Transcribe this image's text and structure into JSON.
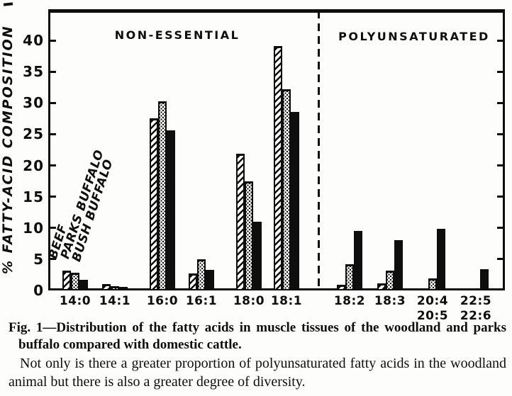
{
  "page": {
    "ink_color": "#0e0e0e",
    "paper_color": "#fdfdfc"
  },
  "chart_data": {
    "type": "bar",
    "ylabel": "% FATTY-ACID COMPOSITION",
    "ylim": [
      0,
      40
    ],
    "yticks": [
      0,
      5,
      10,
      15,
      20,
      25,
      30,
      35,
      40
    ],
    "grid": false,
    "legend_position": "rotated labels inside plot, above first bar group",
    "sections": [
      {
        "label": "NON-ESSENTIAL",
        "categories": [
          "14:0",
          "14:1",
          "16:0",
          "16:1",
          "18:0",
          "18:1"
        ]
      },
      {
        "label": "POLYUNSATURATED",
        "categories": [
          "18:2",
          "18:3",
          "20:4\n20:5",
          "22:5\n22:6"
        ]
      }
    ],
    "categories": [
      "14:0",
      "14:1",
      "16:0",
      "16:1",
      "18:0",
      "18:1",
      "18:2",
      "18:3",
      "20:4\n20:5",
      "22:5\n22:6"
    ],
    "series": [
      {
        "name": "BEEF",
        "pattern": "diagonal-hatch",
        "values": [
          3.2,
          1.0,
          27.5,
          2.7,
          21.9,
          39.1,
          0.9,
          1.1,
          0.2,
          0.1
        ]
      },
      {
        "name": "PARKS BUFFALO",
        "pattern": "stipple-dots",
        "values": [
          2.8,
          0.7,
          30.3,
          5.0,
          17.4,
          32.2,
          4.2,
          3.2,
          1.9,
          0.2
        ]
      },
      {
        "name": "BUSH BUFFALO",
        "pattern": "solid-black",
        "values": [
          1.7,
          0.6,
          25.6,
          3.3,
          11.0,
          28.6,
          9.5,
          8.1,
          9.9,
          3.4
        ]
      }
    ]
  },
  "figure": {
    "caption": "Fig. 1—Distribution of the fatty acids in muscle tissues of the woodland and parks buffalo compared with domestic cattle.",
    "body_text": "Not only is there a greater proportion of polyunsaturated fatty acids in the woodland animal but there is also a greater degree of diversity."
  }
}
